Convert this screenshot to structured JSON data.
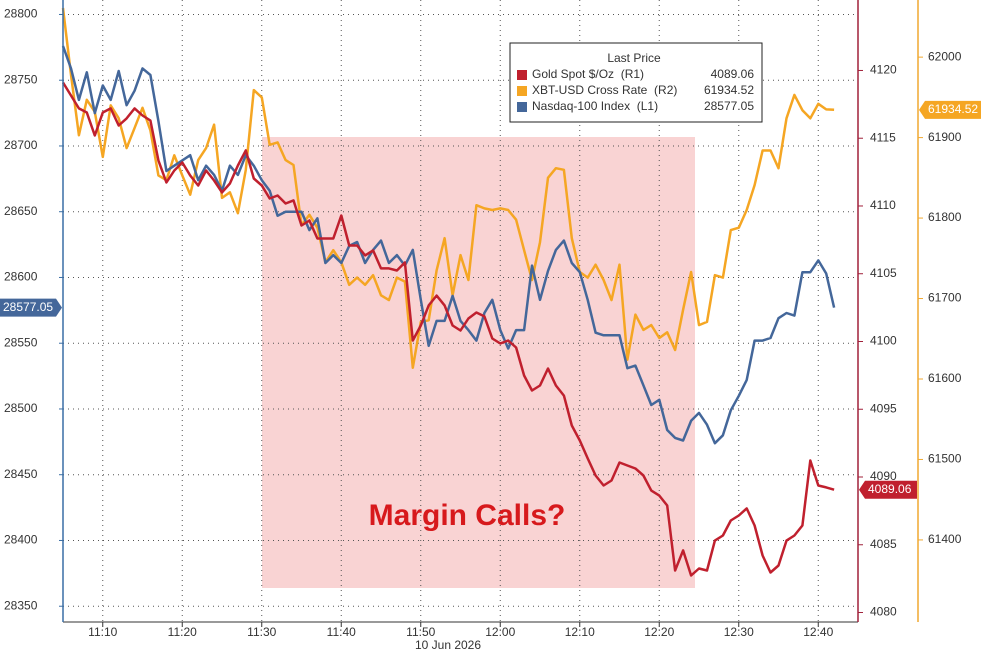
{
  "chart_data": {
    "type": "line",
    "x": [
      "11:05",
      "11:06",
      "11:07",
      "11:08",
      "11:09",
      "11:10",
      "11:11",
      "11:12",
      "11:13",
      "11:14",
      "11:15",
      "11:16",
      "11:17",
      "11:18",
      "11:19",
      "11:20",
      "11:21",
      "11:22",
      "11:23",
      "11:24",
      "11:25",
      "11:26",
      "11:27",
      "11:28",
      "11:29",
      "11:30",
      "11:31",
      "11:32",
      "11:33",
      "11:34",
      "11:35",
      "11:36",
      "11:37",
      "11:38",
      "11:39",
      "11:40",
      "11:41",
      "11:42",
      "11:43",
      "11:44",
      "11:45",
      "11:46",
      "11:47",
      "11:48",
      "11:49",
      "11:50",
      "11:51",
      "11:52",
      "11:53",
      "11:54",
      "11:55",
      "11:56",
      "11:57",
      "11:58",
      "11:59",
      "12:00",
      "12:01",
      "12:02",
      "12:03",
      "12:04",
      "12:05",
      "12:06",
      "12:07",
      "12:08",
      "12:09",
      "12:10",
      "12:11",
      "12:12",
      "12:13",
      "12:14",
      "12:15",
      "12:16",
      "12:17",
      "12:18",
      "12:19",
      "12:20",
      "12:21",
      "12:22",
      "12:23",
      "12:24",
      "12:25",
      "12:26",
      "12:27",
      "12:28",
      "12:29",
      "12:30",
      "12:31",
      "12:32",
      "12:33",
      "12:34",
      "12:35",
      "12:36",
      "12:37",
      "12:38",
      "12:39",
      "12:40",
      "12:41",
      "12:42"
    ],
    "xlim": [
      "11:05",
      "12:45"
    ],
    "xticks": [
      "11:10",
      "11:20",
      "11:30",
      "11:40",
      "11:50",
      "12:00",
      "12:10",
      "12:20",
      "12:30",
      "12:40"
    ],
    "xlabel": "10 Jun 2026",
    "ylim": [
      28338,
      28811
    ],
    "yticks": [
      28350,
      28400,
      28450,
      28500,
      28550,
      28600,
      28650,
      28700,
      28750,
      28800
    ],
    "y2lim": [
      4079.3,
      4125.2
    ],
    "y2ticks": [
      4080,
      4085,
      4090,
      4095,
      4100,
      4105,
      4110,
      4115,
      4120
    ],
    "y3lim": [
      61298,
      62071
    ],
    "y3ticks": [
      61400,
      61500,
      61600,
      61700,
      61800,
      61900,
      62000
    ],
    "grid": true,
    "legend_title": "Last Price",
    "annotation": "Margin Calls?",
    "series": [
      {
        "name": "XBT-USD Cross Rate  (R2)",
        "color": "#f5a623",
        "axis": "y3",
        "values": [
          62061,
          61978,
          61903,
          61947,
          61932,
          61876,
          61940,
          61924,
          61887,
          61912,
          61937,
          61909,
          61853,
          61847,
          61878,
          61853,
          61829,
          61872,
          61887,
          61916,
          61825,
          61832,
          61806,
          61860,
          61959,
          61950,
          61891,
          61894,
          61872,
          61866,
          61791,
          61804,
          61788,
          61745,
          61760,
          61745,
          61717,
          61726,
          61717,
          61729,
          61704,
          61698,
          61726,
          61721,
          61614,
          61671,
          61673,
          61735,
          61775,
          61704,
          61754,
          61723,
          61816,
          61812,
          61810,
          61812,
          61810,
          61798,
          61760,
          61723,
          61770,
          61850,
          61862,
          61860,
          61775,
          61733,
          61726,
          61742,
          61723,
          61698,
          61742,
          61624,
          61680,
          61661,
          61667,
          61651,
          61658,
          61636,
          61686,
          61733,
          61667,
          61671,
          61729,
          61726,
          61785,
          61788,
          61810,
          61841,
          61884,
          61884,
          61862,
          61924,
          61953,
          61934,
          61924,
          61942,
          61935,
          61934.52
        ]
      },
      {
        "name": "Nasdaq-100 Index  (L1)",
        "color": "#44679a",
        "axis": "y",
        "values": [
          28776,
          28759,
          28735,
          28756,
          28725,
          28746,
          28735,
          28757,
          28731,
          28742,
          28759,
          28754,
          28719,
          28681,
          28685,
          28689,
          28693,
          28674,
          28685,
          28678,
          28666,
          28685,
          28678,
          28693,
          28685,
          28674,
          28666,
          28647,
          28650,
          28650,
          28650,
          28636,
          28645,
          28611,
          28617,
          28611,
          28624,
          28627,
          28611,
          28621,
          28628,
          28611,
          28617,
          28609,
          28621,
          28583,
          28548,
          28567,
          28567,
          28586,
          28567,
          28560,
          28552,
          28573,
          28583,
          28560,
          28546,
          28560,
          28560,
          28609,
          28583,
          28605,
          28621,
          28628,
          28611,
          28604,
          28583,
          28558,
          28556,
          28556,
          28556,
          28531,
          28533,
          28518,
          28503,
          28507,
          28484,
          28478,
          28476,
          28491,
          28497,
          28488,
          28474,
          28480,
          28499,
          28510,
          28522,
          28552,
          28552,
          28554,
          28569,
          28573,
          28571,
          28604,
          28604,
          28613,
          28603,
          28577.05
        ]
      },
      {
        "name": "Gold Spot $/Oz  (R1)",
        "color": "#c0202e",
        "axis": "y2",
        "values": [
          4119.11,
          4118.15,
          4117.2,
          4116.9,
          4115.2,
          4116.9,
          4117.2,
          4115.94,
          4116.46,
          4117.2,
          4116.68,
          4116.31,
          4113.36,
          4111.73,
          4112.62,
          4113.21,
          4112.25,
          4111.51,
          4112.62,
          4111.88,
          4111,
          4111.66,
          4112.99,
          4114.1,
          4112.03,
          4111.51,
          4110.55,
          4110.77,
          4110.18,
          4110.41,
          4108.56,
          4108.93,
          4107.6,
          4107.6,
          4107.6,
          4109.3,
          4107.08,
          4107.08,
          4106.35,
          4106.72,
          4105.39,
          4105.39,
          4105.24,
          4105.83,
          4100.07,
          4101.18,
          4102.66,
          4103.39,
          4102.66,
          4101.18,
          4100.81,
          4101.7,
          4102.14,
          4101.85,
          4100.22,
          4099.85,
          4100.07,
          4099.56,
          4097.49,
          4096.38,
          4096.75,
          4098.01,
          4096.75,
          4096.01,
          4093.8,
          4092.69,
          4091.37,
          4090.11,
          4089.37,
          4089.74,
          4091.07,
          4090.85,
          4090.63,
          4090.11,
          4089,
          4088.63,
          4087.9,
          4083.1,
          4084.58,
          4082.73,
          4083.25,
          4083.1,
          4085.31,
          4085.68,
          4086.79,
          4087.16,
          4087.68,
          4086.42,
          4084.21,
          4082.95,
          4083.47,
          4085.31,
          4085.68,
          4086.42,
          4091.22,
          4089.37,
          4089.23,
          4089.06
        ]
      }
    ]
  }
}
